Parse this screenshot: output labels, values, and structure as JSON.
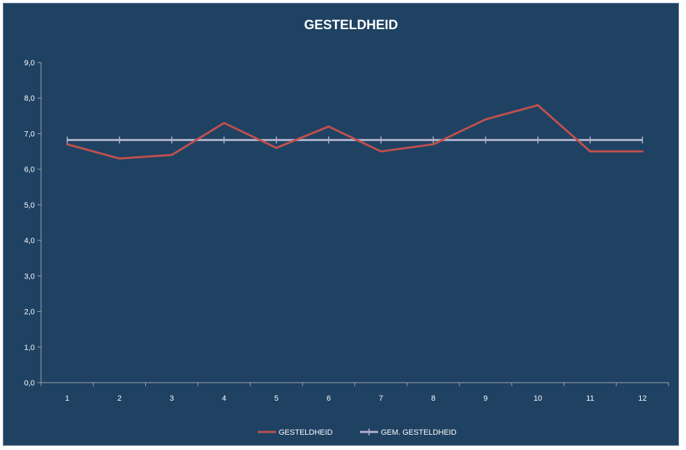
{
  "chart_data": {
    "type": "line",
    "title": "GESTELDHEID",
    "categories": [
      "1",
      "2",
      "3",
      "4",
      "5",
      "6",
      "7",
      "8",
      "9",
      "10",
      "11",
      "12"
    ],
    "series": [
      {
        "name": "GESTELDHEID",
        "color": "#c0504d",
        "values": [
          6.7,
          6.3,
          6.4,
          7.3,
          6.6,
          7.2,
          6.5,
          6.7,
          7.4,
          7.8,
          6.5,
          6.5
        ]
      },
      {
        "name": "GEM. GESTELDHEID",
        "color": "#b3b3cc",
        "values": [
          6.82,
          6.82,
          6.82,
          6.82,
          6.82,
          6.82,
          6.82,
          6.82,
          6.82,
          6.82,
          6.82,
          6.82
        ]
      }
    ],
    "ylim": [
      0,
      9
    ],
    "yticks": [
      "0,0",
      "1,0",
      "2,0",
      "3,0",
      "4,0",
      "5,0",
      "6,0",
      "7,0",
      "8,0",
      "9,0"
    ],
    "grid": false,
    "legend_position": "bottom",
    "background": "#1f4263",
    "axis_color": "#a6a6a6"
  }
}
